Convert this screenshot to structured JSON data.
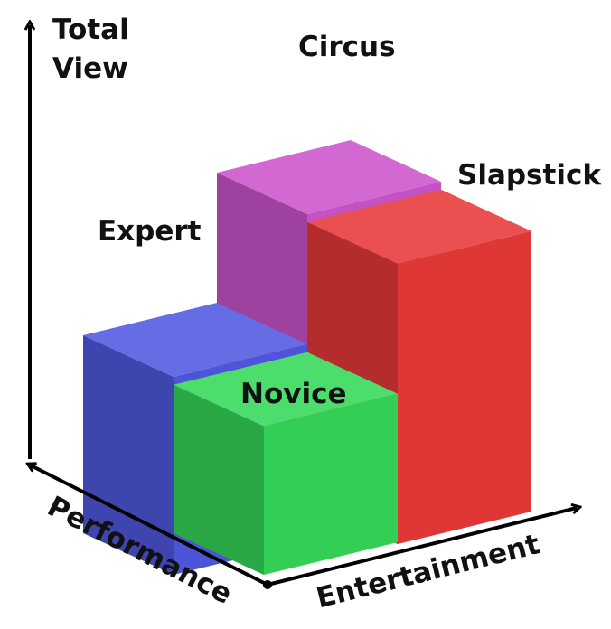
{
  "chart_data": {
    "type": "bar",
    "subtype": "3d-bar-2x2",
    "ylabel": [
      "Total",
      "View"
    ],
    "x_axis_label": "Performance",
    "z_axis_label": "Entertainment",
    "performance_levels": [
      "Expert",
      "Novice"
    ],
    "entertainment_types": [
      "Circus",
      "Slapstick"
    ],
    "bars": [
      {
        "label": "Circus",
        "performance": "Expert",
        "entertainment": "Circus",
        "value": 10,
        "color": "#cc55cc"
      },
      {
        "label": "Expert",
        "performance": "Expert",
        "entertainment": "Slapstick",
        "value": 6,
        "color": "#5058e0"
      },
      {
        "label": "Slapstick",
        "performance": "Novice",
        "entertainment": "Circus",
        "value": 8.5,
        "color": "#e83838"
      },
      {
        "label": "Novice",
        "performance": "Novice",
        "entertainment": "Slapstick",
        "value": 4.5,
        "color": "#34d858"
      }
    ],
    "grid": false,
    "legend": "none"
  }
}
